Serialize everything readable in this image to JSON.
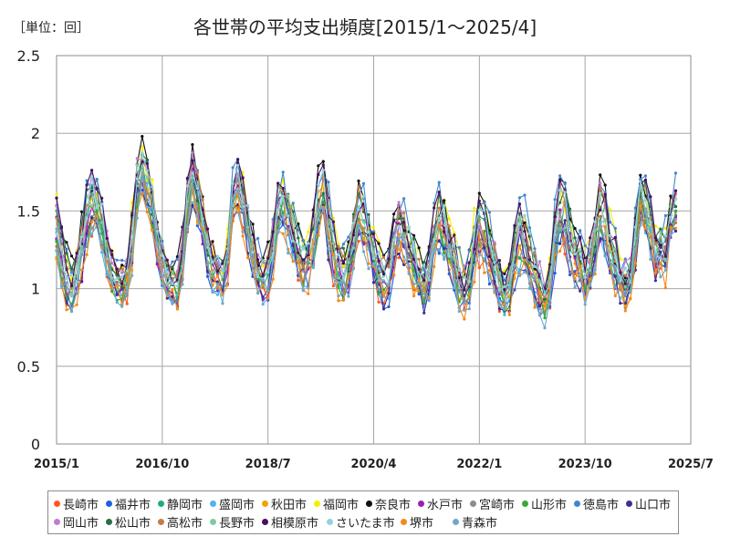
{
  "chart_data": {
    "type": "line",
    "title": "各世帯の平均支出頻度[2015/1～2025/4]",
    "unit_label": "［単位：回］",
    "x_ticks": [
      "2015/1",
      "2016/10",
      "2018/7",
      "2020/4",
      "2022/1",
      "2023/10",
      "2025/7"
    ],
    "y_ticks": [
      "0",
      "0.5",
      "1",
      "1.5",
      "2",
      "2.5"
    ],
    "ylim": [
      0,
      2.5
    ],
    "grid": true,
    "legend_position": "bottom",
    "series": [
      {
        "name": "長崎市",
        "color": "#ff5a1f"
      },
      {
        "name": "福井市",
        "color": "#1f5fe0"
      },
      {
        "name": "静岡市",
        "color": "#1fae7a"
      },
      {
        "name": "盛岡市",
        "color": "#4fb4ea"
      },
      {
        "name": "秋田市",
        "color": "#f2a200"
      },
      {
        "name": "福岡市",
        "color": "#f5ef00"
      },
      {
        "name": "奈良市",
        "color": "#111111"
      },
      {
        "name": "水戸市",
        "color": "#9b1fb8"
      },
      {
        "name": "宮崎市",
        "color": "#8c8c8c"
      },
      {
        "name": "山形市",
        "color": "#39a935"
      },
      {
        "name": "徳島市",
        "color": "#3f86d0"
      },
      {
        "name": "山口市",
        "color": "#3a2f95"
      },
      {
        "name": "岡山市",
        "color": "#c17ad0"
      },
      {
        "name": "松山市",
        "color": "#2b6e45"
      },
      {
        "name": "高松市",
        "color": "#c77b4a"
      },
      {
        "name": "長野市",
        "color": "#7dcca0"
      },
      {
        "name": "相模原市",
        "color": "#4a1060"
      },
      {
        "name": "さいたま市",
        "color": "#8fd3df"
      },
      {
        "name": "堺市",
        "color": "#f28a1a"
      },
      {
        "name": "青森市",
        "color": "#6fa8c9"
      }
    ],
    "overview": {
      "x_start": "2015/1",
      "x_end": "2025/4",
      "band_low": [
        1.05,
        0.95,
        0.85,
        0.82,
        0.85,
        0.95,
        1.15,
        1.3,
        1.28,
        1.2,
        1.05,
        0.9,
        0.85,
        0.8,
        0.85,
        1.0,
        1.4,
        1.55,
        1.45,
        1.3,
        1.1,
        0.95,
        0.85,
        0.85,
        0.8,
        0.95,
        1.3,
        1.45,
        1.3,
        1.2,
        1.05,
        0.95,
        0.9,
        0.88,
        1.0,
        1.4,
        1.4,
        1.3,
        1.15,
        1.0,
        0.9,
        0.85,
        0.88,
        1.05,
        1.3,
        1.3,
        1.2,
        1.1,
        0.98,
        0.92,
        0.95,
        1.05,
        1.25,
        1.3,
        1.1,
        0.98,
        0.88,
        0.85,
        0.9,
        1.1,
        1.25,
        1.2,
        1.1,
        0.98,
        0.88,
        0.82,
        0.85,
        1.05,
        1.15,
        1.1,
        1.0,
        0.92,
        0.85,
        0.8,
        0.88,
        1.05,
        1.15,
        1.1,
        1.02,
        0.9,
        0.82,
        0.78,
        0.82,
        1.0,
        1.1,
        1.05,
        0.95,
        0.88,
        0.82,
        0.78,
        0.8,
        0.95,
        1.05,
        1.0,
        0.92,
        0.85,
        0.78,
        0.72,
        0.8,
        1.05,
        1.2,
        1.15,
        1.05,
        0.98,
        0.92,
        0.88,
        0.9,
        1.05,
        1.2,
        1.15,
        1.05,
        0.92,
        0.85,
        0.8,
        0.85,
        1.05,
        1.3,
        1.3,
        1.15,
        1.0,
        1.0,
        0.98,
        1.2,
        1.3
      ],
      "band_high": [
        1.7,
        1.5,
        1.35,
        1.25,
        1.3,
        1.55,
        1.75,
        1.85,
        1.75,
        1.65,
        1.45,
        1.3,
        1.25,
        1.2,
        1.3,
        1.65,
        1.95,
        2.05,
        1.9,
        1.75,
        1.5,
        1.35,
        1.25,
        1.2,
        1.25,
        1.45,
        1.85,
        2.0,
        1.85,
        1.65,
        1.45,
        1.35,
        1.3,
        1.3,
        1.45,
        1.8,
        1.9,
        1.8,
        1.65,
        1.45,
        1.35,
        1.3,
        1.35,
        1.55,
        1.8,
        1.85,
        1.75,
        1.6,
        1.45,
        1.4,
        1.45,
        1.6,
        1.85,
        1.9,
        1.7,
        1.55,
        1.4,
        1.35,
        1.4,
        1.6,
        1.75,
        1.7,
        1.6,
        1.45,
        1.35,
        1.3,
        1.35,
        1.55,
        1.7,
        1.65,
        1.5,
        1.4,
        1.3,
        1.28,
        1.35,
        1.6,
        1.75,
        1.7,
        1.55,
        1.4,
        1.3,
        1.25,
        1.3,
        1.55,
        1.7,
        1.65,
        1.5,
        1.38,
        1.28,
        1.22,
        1.3,
        1.5,
        1.65,
        1.62,
        1.48,
        1.35,
        1.25,
        1.15,
        1.25,
        1.6,
        1.8,
        1.75,
        1.6,
        1.48,
        1.4,
        1.35,
        1.4,
        1.6,
        1.78,
        1.72,
        1.58,
        1.42,
        1.32,
        1.25,
        1.3,
        1.55,
        1.85,
        1.8,
        1.65,
        1.5,
        1.5,
        1.48,
        1.65,
        1.75
      ]
    }
  }
}
